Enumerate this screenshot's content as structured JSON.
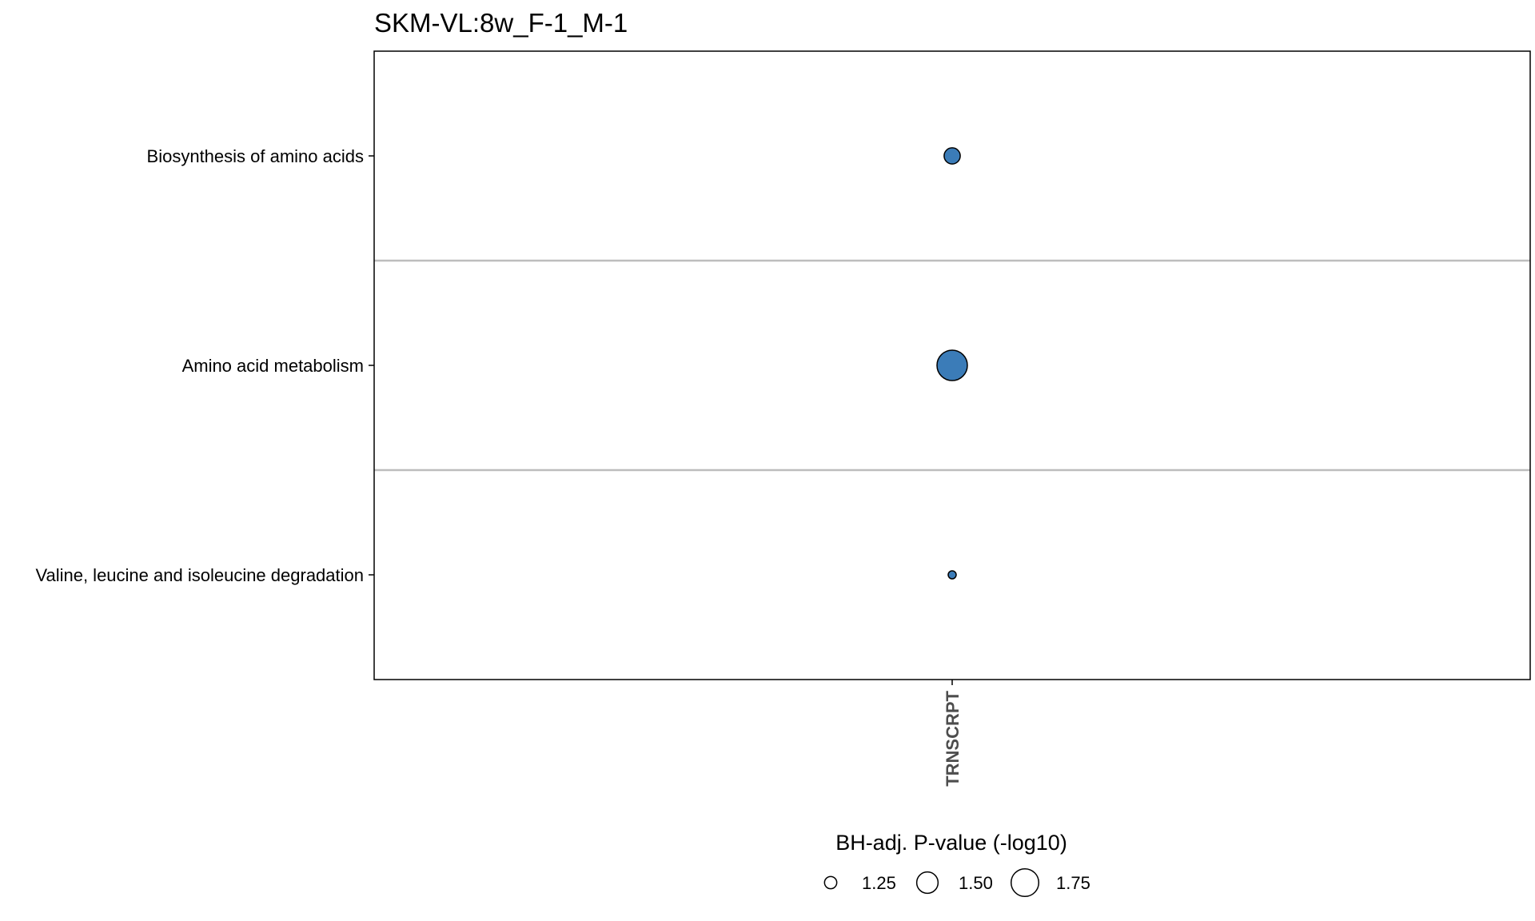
{
  "chart_data": {
    "type": "scatter",
    "title": "SKM-VL:8w_F-1_M-1",
    "x_categories": [
      "TRNSCRPT"
    ],
    "y_categories": [
      "Biosynthesis of amino acids",
      "Amino acid metabolism",
      "Valine, leucine and isoleucine degradation"
    ],
    "points": [
      {
        "x": "TRNSCRPT",
        "y": "Biosynthesis of amino acids",
        "size_value": 1.34
      },
      {
        "x": "TRNSCRPT",
        "y": "Amino acid metabolism",
        "size_value": 1.88
      },
      {
        "x": "TRNSCRPT",
        "y": "Valine, leucine and isoleucine degradation",
        "size_value": 1.18
      }
    ],
    "point_fill": "#3B7CB8",
    "point_stroke": "#000000",
    "separator_color": "#bdbdbd",
    "size_legend": {
      "title": "BH-adj. P-value (-log10)",
      "position": "bottom",
      "breaks": [
        1.25,
        1.5,
        1.75
      ],
      "labels": [
        "1.25",
        "1.50",
        "1.75"
      ]
    }
  }
}
